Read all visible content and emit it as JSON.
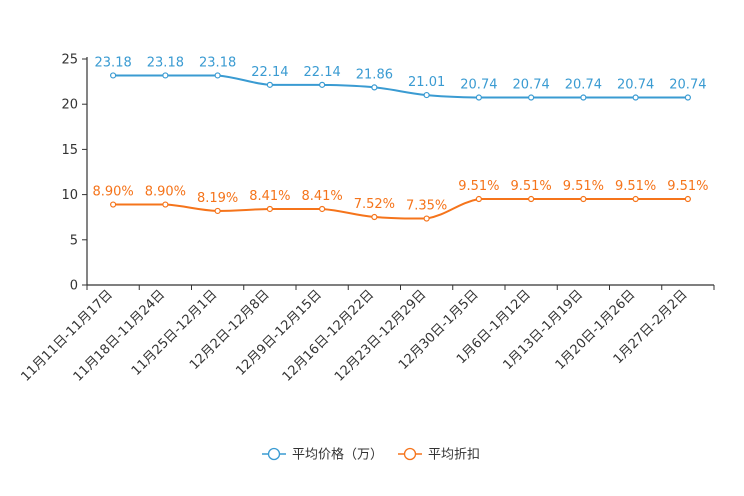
{
  "chart_data": {
    "type": "line",
    "title": "",
    "xlabel": "",
    "ylabel": "",
    "ylim": [
      0,
      25
    ],
    "yticks": [
      0,
      5,
      10,
      15,
      20,
      25
    ],
    "categories": [
      "11月11日-11月17日",
      "11月18日-11月24日",
      "11月25日-12月1日",
      "12月2日-12月8日",
      "12月9日-12月15日",
      "12月16日-12月22日",
      "12月23日-12月29日",
      "12月30日-1月5日",
      "1月6日-1月12日",
      "1月13日-1月19日",
      "1月20日-1月26日",
      "1月27日-2月2日"
    ],
    "series": [
      {
        "name": "平均价格（万）",
        "color": "#3a9bd2",
        "values": [
          23.18,
          23.18,
          23.18,
          22.14,
          22.14,
          21.86,
          21.01,
          20.74,
          20.74,
          20.74,
          20.74,
          20.74
        ],
        "labels": [
          "23.18",
          "23.18",
          "23.18",
          "22.14",
          "22.14",
          "21.86",
          "21.01",
          "20.74",
          "20.74",
          "20.74",
          "20.74",
          "20.74"
        ]
      },
      {
        "name": "平均折扣",
        "color": "#f5741b",
        "values": [
          8.9,
          8.9,
          8.19,
          8.41,
          8.41,
          7.52,
          7.35,
          9.51,
          9.51,
          9.51,
          9.51,
          9.51
        ],
        "labels": [
          "8.90%",
          "8.90%",
          "8.19%",
          "8.41%",
          "8.41%",
          "7.52%",
          "7.35%",
          "9.51%",
          "9.51%",
          "9.51%",
          "9.51%",
          "9.51%"
        ]
      }
    ],
    "legend": "bottom-center"
  }
}
